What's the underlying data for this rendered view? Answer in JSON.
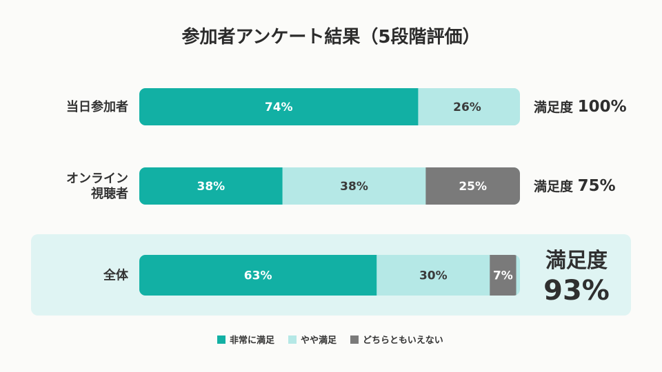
{
  "chart_data": {
    "type": "bar",
    "stacked": true,
    "orientation": "horizontal",
    "title": "参加者アンケート結果（5段階評価）",
    "categories": [
      {
        "label_lines": [
          "当日参加者"
        ]
      },
      {
        "label_lines": [
          "オンライン",
          "視聴者"
        ]
      },
      {
        "label_lines": [
          "全体"
        ]
      }
    ],
    "series": [
      {
        "name": "非常に満足",
        "color": "#12b0a4",
        "label_color": "#ffffff",
        "values": [
          74,
          38,
          63
        ]
      },
      {
        "name": "やや満足",
        "color": "#b5e8e6",
        "label_color": "#3a3a3a",
        "values": [
          26,
          38,
          30
        ]
      },
      {
        "name": "どちらともいえない",
        "color": "#7a7a7a",
        "label_color": "#ffffff",
        "values": [
          0,
          25,
          7
        ]
      }
    ],
    "value_suffix": "%",
    "satisfaction": [
      {
        "label": "満足度",
        "value": "100%"
      },
      {
        "label": "満足度",
        "value": "75%"
      },
      {
        "label": "満足度",
        "value": "93%"
      }
    ],
    "highlight_row": 2,
    "highlight_color": "#dff4f3",
    "track_color": "#b5e8e6",
    "legend_position": "bottom-center",
    "xlim": [
      0,
      101
    ]
  }
}
